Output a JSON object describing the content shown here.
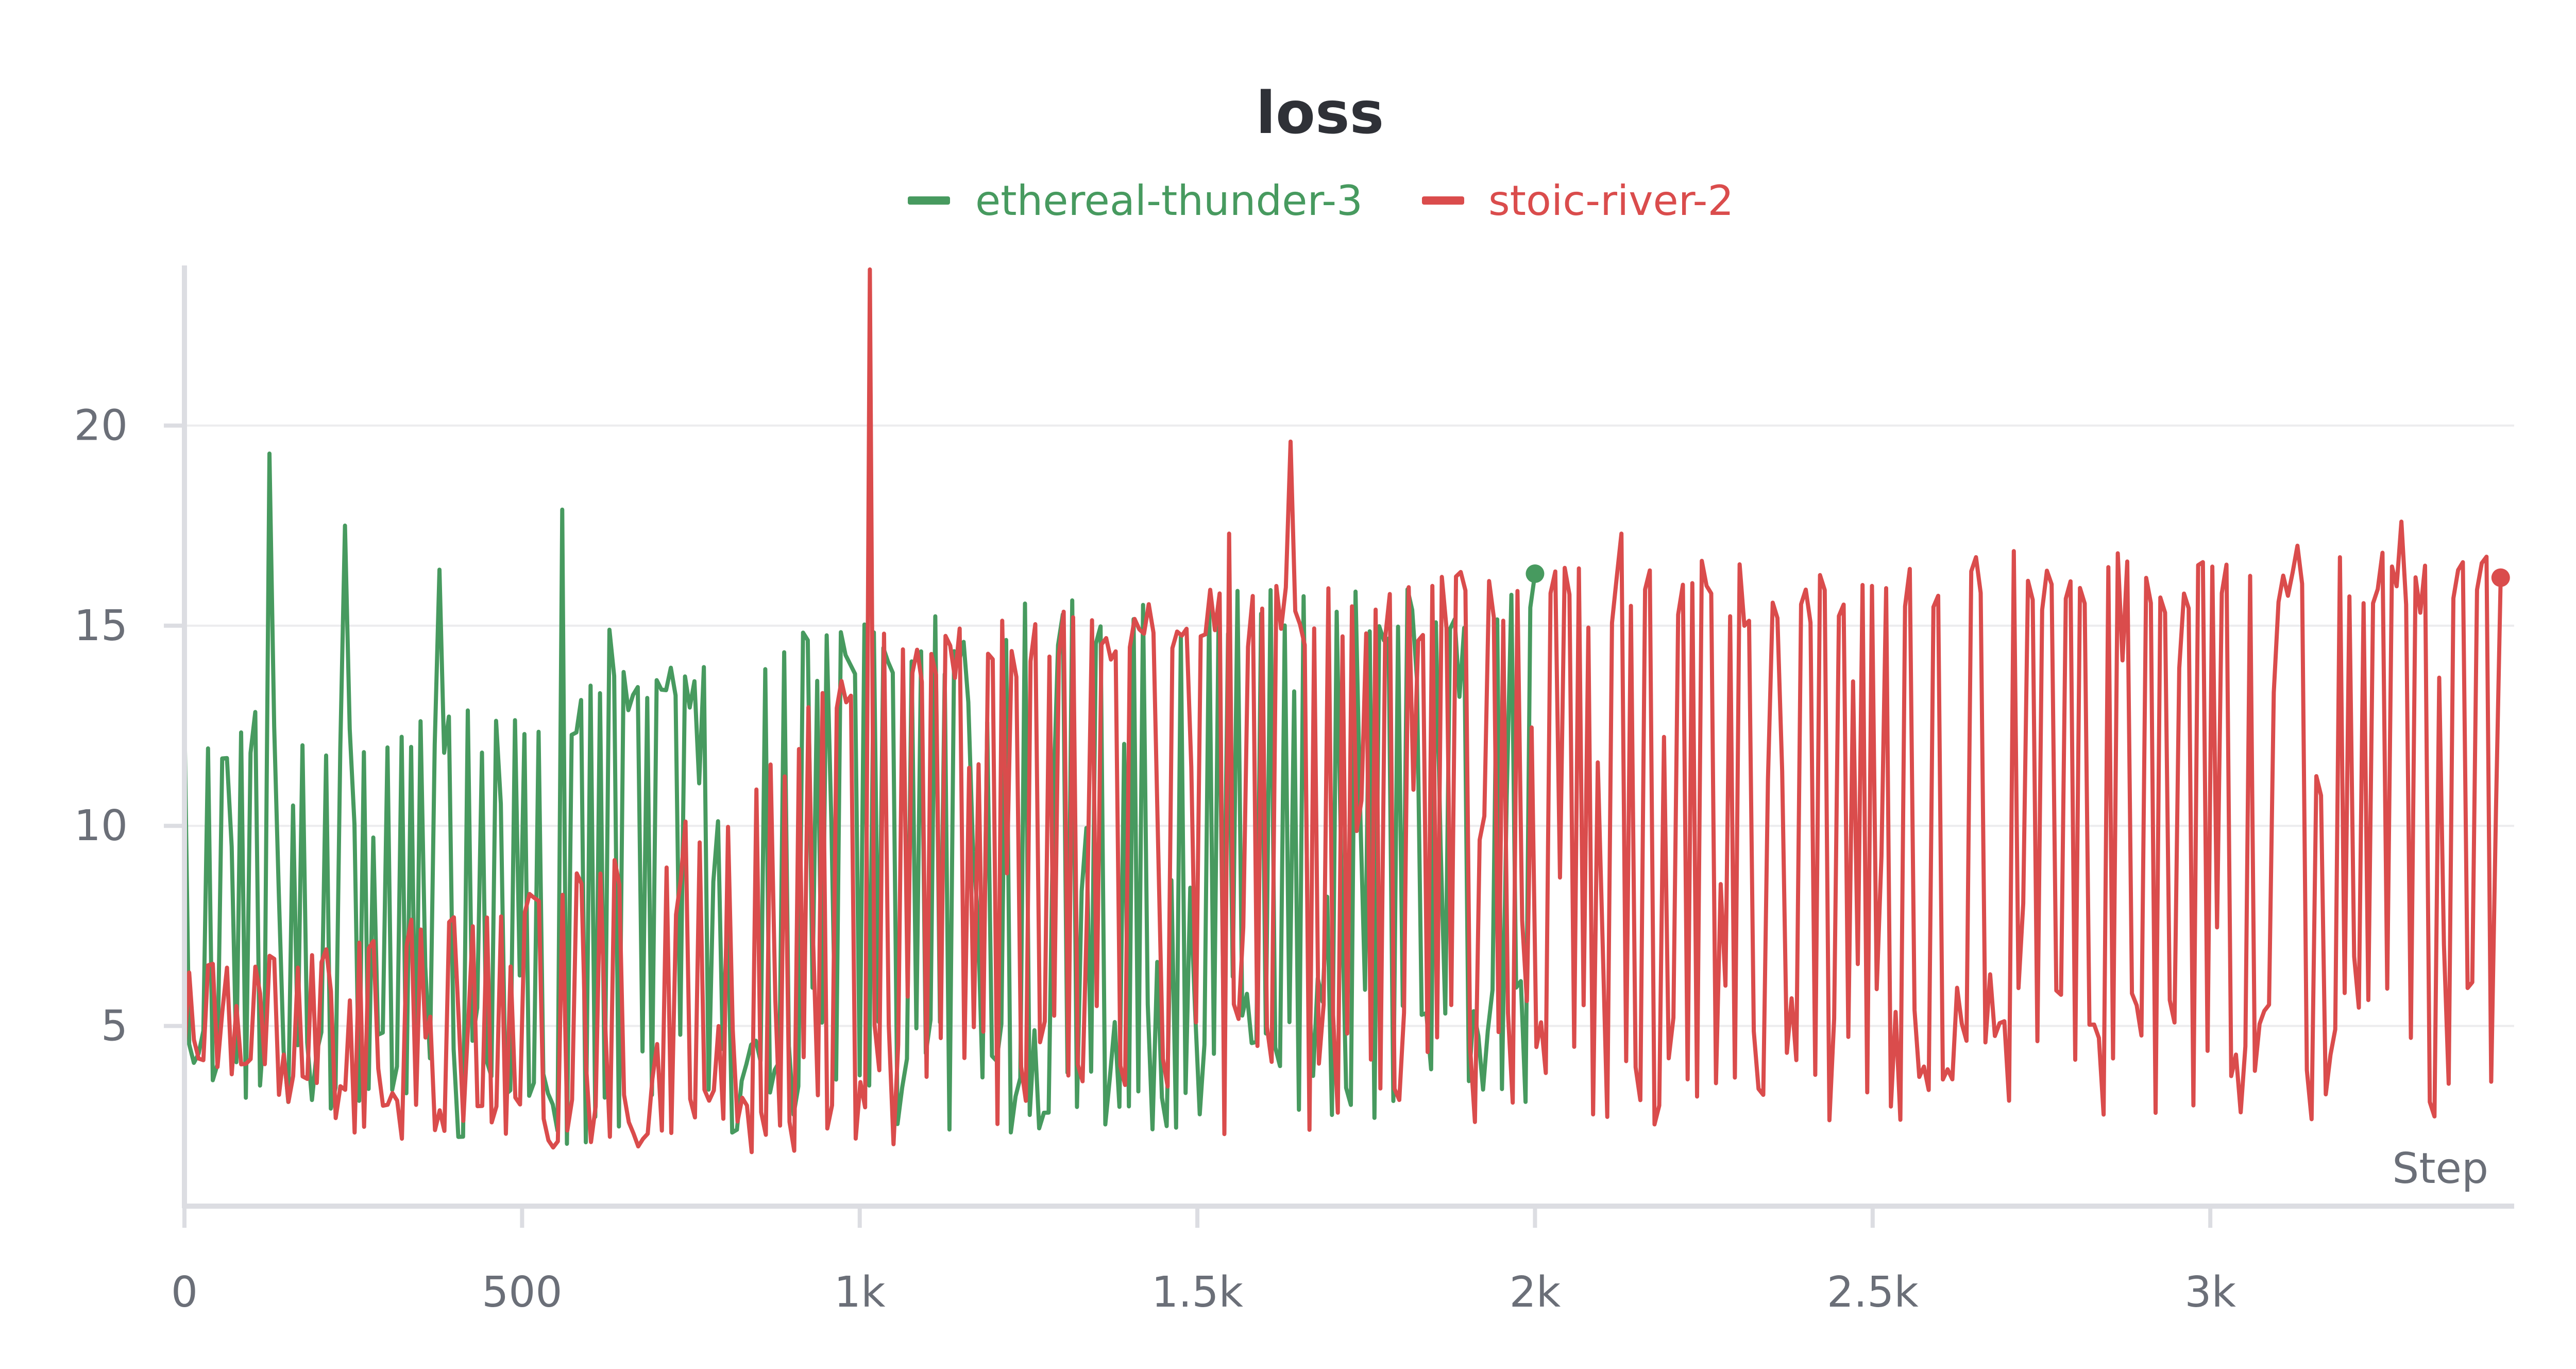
{
  "chart_data": {
    "type": "line",
    "title": "loss",
    "xlabel": "Step",
    "ylabel": "",
    "xlim": [
      0,
      3450
    ],
    "ylim": [
      0.5,
      24
    ],
    "x_ticks": [
      0,
      500,
      1000,
      1500,
      2000,
      2500,
      3000
    ],
    "x_tick_labels": [
      "0",
      "500",
      "1k",
      "1.5k",
      "2k",
      "2.5k",
      "3k"
    ],
    "y_ticks": [
      5,
      10,
      15,
      20
    ],
    "y_tick_labels": [
      "5",
      "10",
      "15",
      "20"
    ],
    "grid": true,
    "legend_position": "top-center",
    "series": [
      {
        "name": "ethereal-thunder-3",
        "color": "#479a5f",
        "x_range": [
          0,
          2000
        ],
        "upper_envelope": [
          [
            0,
            12.8
          ],
          [
            200,
            12.9
          ],
          [
            400,
            13.0
          ],
          [
            560,
            13.2
          ],
          [
            580,
            13.6
          ],
          [
            700,
            14.2
          ],
          [
            900,
            14.9
          ],
          [
            1200,
            15.5
          ],
          [
            1500,
            15.9
          ],
          [
            1800,
            16.2
          ],
          [
            2000,
            16.3
          ]
        ],
        "lower_envelope": [
          [
            0,
            3.0
          ],
          [
            500,
            2.0
          ],
          [
            1000,
            2.4
          ],
          [
            1200,
            2.2
          ],
          [
            1500,
            2.4
          ],
          [
            2000,
            2.8
          ]
        ],
        "spikes": [
          [
            125,
            19.3
          ],
          [
            235,
            17.5
          ],
          [
            375,
            16.4
          ],
          [
            560,
            17.9
          ],
          [
            630,
            14.9
          ]
        ],
        "last_point": [
          2000,
          16.3
        ]
      },
      {
        "name": "stoic-river-2",
        "color": "#da4c4c",
        "x_range": [
          0,
          3430
        ],
        "upper_envelope": [
          [
            0,
            6.5
          ],
          [
            200,
            7.0
          ],
          [
            500,
            8.5
          ],
          [
            800,
            10.5
          ],
          [
            1000,
            14.8
          ],
          [
            1500,
            15.9
          ],
          [
            2000,
            16.5
          ],
          [
            2500,
            16.8
          ],
          [
            3000,
            17.0
          ],
          [
            3430,
            17.0
          ]
        ],
        "lower_envelope": [
          [
            0,
            4.0
          ],
          [
            300,
            2.0
          ],
          [
            500,
            1.7
          ],
          [
            1000,
            1.8
          ],
          [
            1500,
            2.2
          ],
          [
            2000,
            2.5
          ],
          [
            2500,
            2.6
          ],
          [
            3000,
            2.6
          ],
          [
            3430,
            2.6
          ]
        ],
        "spikes": [
          [
            1015,
            23.9
          ],
          [
            1640,
            19.6
          ],
          [
            1550,
            17.3
          ],
          [
            2130,
            17.3
          ],
          [
            3280,
            17.6
          ]
        ],
        "last_point": [
          3430,
          16.2
        ]
      }
    ]
  }
}
